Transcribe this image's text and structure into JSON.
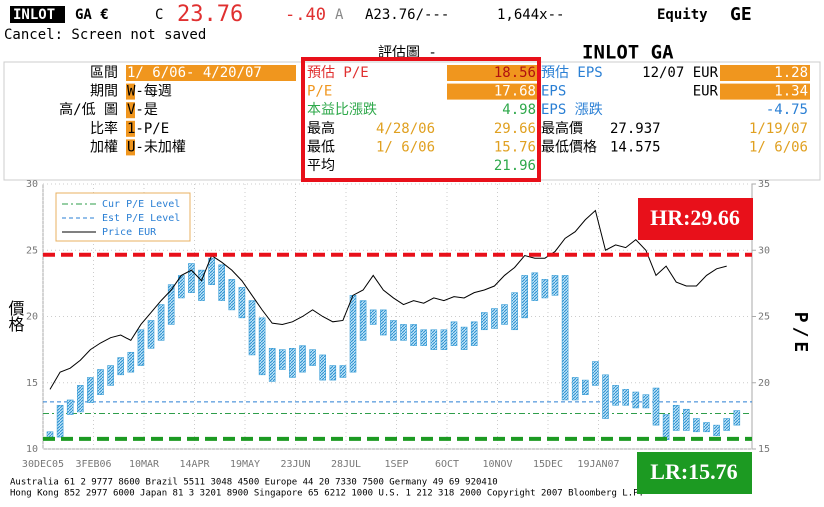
{
  "header": {
    "ticker": "INLOT",
    "exchange": "GA €",
    "c": "C",
    "price": "23.76",
    "change": "-.40",
    "a": "A",
    "bid_ask": "A23.76/---",
    "size": "1,644x--",
    "market": "Equity",
    "function": "GE"
  },
  "status": "Cancel: Screen not saved",
  "panel": {
    "title": "評估圖 -",
    "security": "INLOT GA",
    "settings": [
      {
        "label": "區間",
        "value": "1/ 6/06- 4/20/07"
      },
      {
        "label": "期間",
        "value": "W-每週"
      },
      {
        "label": "高/低 圖",
        "value": "V-是"
      },
      {
        "label": "比率",
        "value": "1-P/E"
      },
      {
        "label": "加權",
        "value": "U-未加權"
      }
    ],
    "pe_stats": [
      {
        "label": "預估 P/E",
        "value": "18.56"
      },
      {
        "label": "P/E",
        "value": "17.68"
      },
      {
        "label": "本益比漲跌",
        "value": "4.98"
      },
      {
        "label": "最高",
        "date": "4/28/06",
        "value": "29.66"
      },
      {
        "label": "最低",
        "date": "1/ 6/06",
        "value": "15.76"
      },
      {
        "label": "平均",
        "value": "21.96"
      }
    ],
    "eps_stats": [
      {
        "label": "預估 EPS",
        "period": "12/07 EUR",
        "value": "1.28"
      },
      {
        "label": "EPS",
        "period": "EUR",
        "value": "1.34"
      },
      {
        "label": "EPS 漲跌",
        "value": "-4.75"
      },
      {
        "label": "最高價",
        "value": "27.937",
        "date": "1/19/07"
      },
      {
        "label": "最低價格",
        "value": "14.575",
        "date": "1/ 6/06"
      }
    ]
  },
  "chart_data": {
    "type": "combo",
    "ylabel": "價格",
    "y2label": "P/E",
    "categories": [
      "30DEC05",
      null,
      null,
      null,
      null,
      "3FEB06",
      null,
      null,
      null,
      null,
      "10MAR",
      null,
      null,
      null,
      null,
      "14APR",
      null,
      null,
      null,
      null,
      "19MAY",
      null,
      null,
      null,
      null,
      "23JUN",
      null,
      null,
      null,
      null,
      "28JUL",
      null,
      null,
      null,
      null,
      "1SEP",
      null,
      null,
      null,
      null,
      "6OCT",
      null,
      null,
      null,
      null,
      "10NOV",
      null,
      null,
      null,
      null,
      "15DEC",
      null,
      null,
      null,
      null,
      "19JAN07",
      null,
      null,
      null,
      null,
      null,
      null,
      null,
      null,
      null,
      null,
      null,
      null,
      null
    ],
    "series": [
      {
        "type": "range-bar",
        "axis": "y2",
        "color": "#3b9fd8",
        "low": [
          15.7,
          15.9,
          17.6,
          17.8,
          18.5,
          19.1,
          19.8,
          20.6,
          20.8,
          21.3,
          22.6,
          23.2,
          24.4,
          26.4,
          26.8,
          26.2,
          27.4,
          26.2,
          25.5,
          24.9,
          22.1,
          20.6,
          20.1,
          21,
          20.4,
          20.8,
          21.3,
          20.2,
          20.2,
          20.4,
          20.8,
          23.2,
          24.4,
          23.6,
          23.2,
          23.2,
          22.8,
          22.8,
          22.5,
          22.5,
          22.8,
          22.5,
          22.8,
          24,
          24.1,
          24.4,
          24,
          24.9,
          26.2,
          26.4,
          26.6,
          18.7,
          18.7,
          19.1,
          19.8,
          17.3,
          18.3,
          18.3,
          18.1,
          18.1,
          16.8,
          15.7,
          16.4,
          16.4,
          16.3,
          16.3,
          16,
          16.4,
          16.8
        ],
        "high": [
          16.3,
          18.3,
          18.7,
          19.8,
          20.4,
          21,
          21.3,
          21.9,
          22.3,
          24,
          24.7,
          25.9,
          27.4,
          28.1,
          29,
          28.5,
          29.4,
          28.9,
          27.8,
          27.2,
          26.2,
          24.9,
          22.6,
          22.5,
          22.6,
          22.8,
          22.5,
          22.1,
          21.3,
          21.3,
          26.6,
          26.2,
          25.5,
          25.5,
          24.7,
          24.4,
          24.4,
          24,
          24,
          24,
          24.6,
          24.2,
          24.6,
          25.3,
          25.6,
          25.9,
          26.8,
          28.1,
          28.3,
          27.8,
          28.1,
          28.1,
          20.4,
          20.2,
          21.6,
          20.6,
          19.8,
          19.5,
          19.3,
          19.1,
          19.6,
          17.6,
          18.3,
          18,
          17.3,
          17,
          16.8,
          17.3,
          17.9
        ]
      },
      {
        "name": "Price EUR",
        "type": "line",
        "axis": "y",
        "color": "#000000",
        "values": [
          14.5,
          15.8,
          16.1,
          16.7,
          17.5,
          18,
          18.4,
          18.6,
          18.2,
          19.4,
          20.3,
          21.2,
          22,
          23.1,
          23.5,
          22.7,
          24.6,
          24.1,
          23.5,
          22.7,
          21.6,
          20.5,
          19.5,
          19.4,
          19.6,
          20,
          20.5,
          20,
          19.6,
          19.7,
          21.6,
          22,
          23.1,
          22,
          21.4,
          20.9,
          21.2,
          21,
          21.4,
          21.2,
          21.5,
          21.4,
          21.8,
          22,
          22.3,
          23.1,
          23.7,
          24.6,
          24.4,
          24.4,
          24.9,
          25.9,
          26.4,
          27.3,
          28,
          25,
          25.4,
          25.2,
          25.8,
          25,
          23.1,
          23.8,
          22.6,
          22.3,
          22.3,
          23.1,
          23.6,
          23.8,
          null
        ]
      }
    ],
    "levels": [
      {
        "name": "Cur P/E Level",
        "value": 17.68,
        "axis": "y2",
        "color": "#2e9e4a",
        "dash": "6 3 2 3"
      },
      {
        "name": "Est P/E Level",
        "value": 18.56,
        "axis": "y2",
        "color": "#2a7fd4",
        "dash": "4 3"
      }
    ],
    "annotations": [
      {
        "label": "HR:29.66",
        "value": 29.66,
        "axis": "y2",
        "color": "#e8101a"
      },
      {
        "label": "LR:15.76",
        "value": 15.76,
        "axis": "y2",
        "color": "#1c9a22"
      }
    ],
    "ylim": [
      10,
      30
    ],
    "yticks": [
      10,
      15,
      20,
      25,
      30
    ],
    "y2lim": [
      15,
      35
    ],
    "y2ticks": [
      15,
      20,
      25,
      30,
      35
    ],
    "grid": true
  },
  "footer": [
    "Australia 61 2 9777 8600          Brazil 5511 3048 4500          Europe 44 20 7330 7500          Germany 49 69 920410",
    "Hong Kong 852 2977 6000 Japan 81 3 3201 8900 Singapore 65 6212 1000 U.S. 1 212 318 2000      Copyright 2007 Bloomberg L.P."
  ]
}
